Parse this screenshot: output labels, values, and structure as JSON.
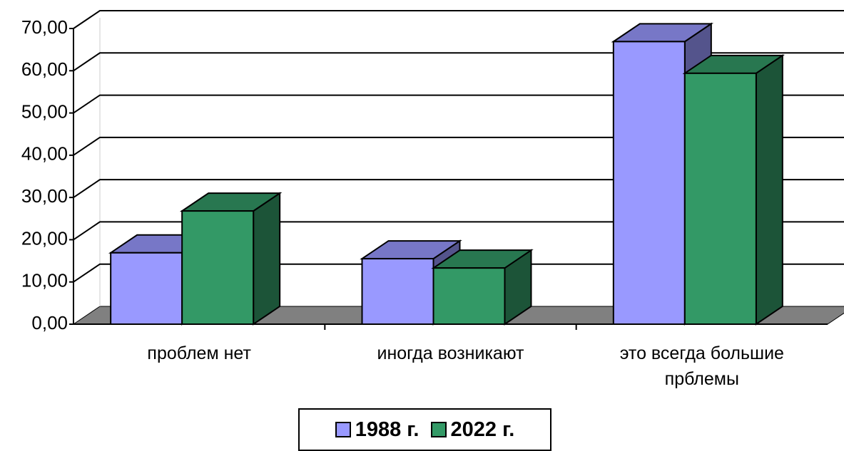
{
  "chart_data": {
    "type": "bar3d",
    "categories": [
      "проблем нет",
      "иногда возникают",
      "это всегда большие прблемы"
    ],
    "series": [
      {
        "name": "1988 г.",
        "color": "#9999ff",
        "values": [
          16.9,
          15.5,
          66.9
        ]
      },
      {
        "name": "2022 г.",
        "color": "#339966",
        "values": [
          26.8,
          13.3,
          59.4
        ]
      }
    ],
    "ylim": [
      0,
      70
    ],
    "yticks": [
      {
        "value": 0,
        "label": "0,00"
      },
      {
        "value": 10,
        "label": "10,00"
      },
      {
        "value": 20,
        "label": "20,00"
      },
      {
        "value": 30,
        "label": "30,00"
      },
      {
        "value": 40,
        "label": "40,00"
      },
      {
        "value": 50,
        "label": "50,00"
      },
      {
        "value": 60,
        "label": "60,00"
      },
      {
        "value": 70,
        "label": "70,00"
      }
    ],
    "grid": true,
    "legend": "bottom"
  }
}
